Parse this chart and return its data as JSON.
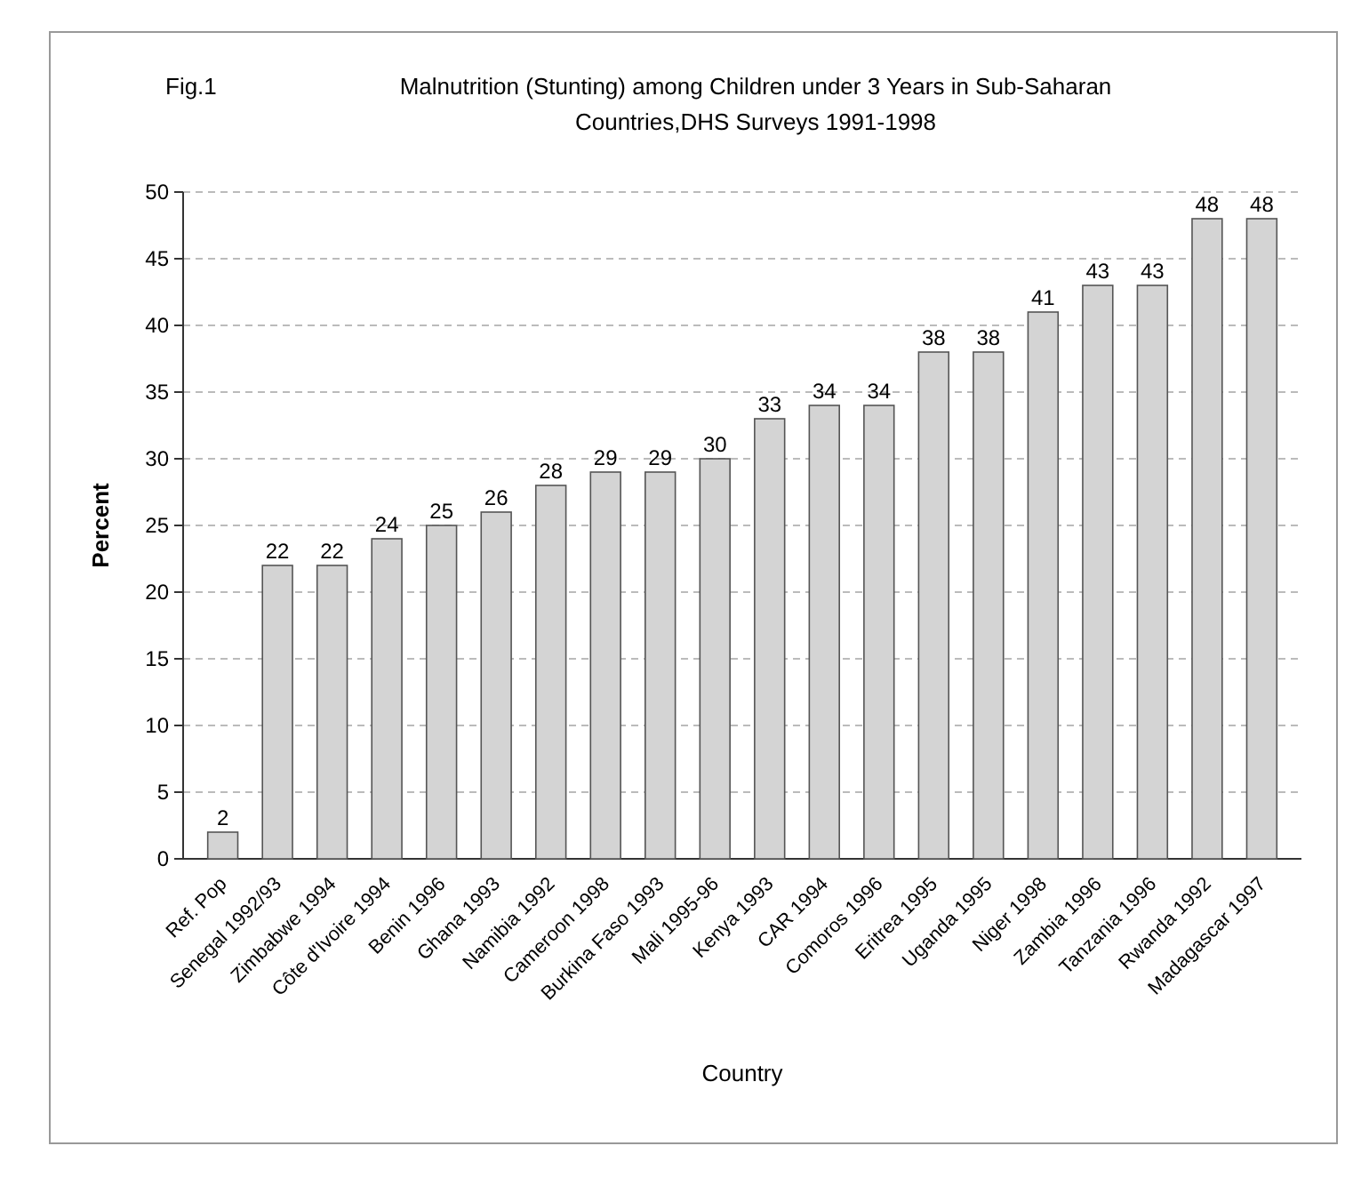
{
  "chart_data": {
    "type": "bar",
    "title": "Malnutrition (Stunting) among Children under 3 Years in Sub-Saharan Countries,DHS Surveys 1991-1998",
    "annotations": [
      "Fig.1"
    ],
    "xlabel": "Country",
    "ylabel": "Percent",
    "categories": [
      "Ref. Pop",
      "Senegal 1992/93",
      "Zimbabwe 1994",
      "Côte d'Ivoire 1994",
      "Benin 1996",
      "Ghana 1993",
      "Namibia 1992",
      "Cameroon 1998",
      "Burkina Faso 1993",
      "Mali 1995-96",
      "Kenya 1993",
      "CAR 1994",
      "Comoros 1996",
      "Eritrea 1995",
      "Uganda 1995",
      "Niger 1998",
      "Zambia 1996",
      "Tanzania 1996",
      "Rwanda 1992",
      "Madagascar 1997"
    ],
    "values": [
      2,
      22,
      22,
      24,
      25,
      26,
      28,
      29,
      29,
      30,
      33,
      34,
      34,
      38,
      38,
      41,
      43,
      43,
      48,
      48
    ],
    "color": "#d4d4d4",
    "ylim": [
      0,
      50
    ],
    "yticks": [
      0,
      5,
      10,
      15,
      20,
      25,
      30,
      35,
      40,
      45,
      50
    ],
    "grid": "y",
    "data_labels": true
  }
}
